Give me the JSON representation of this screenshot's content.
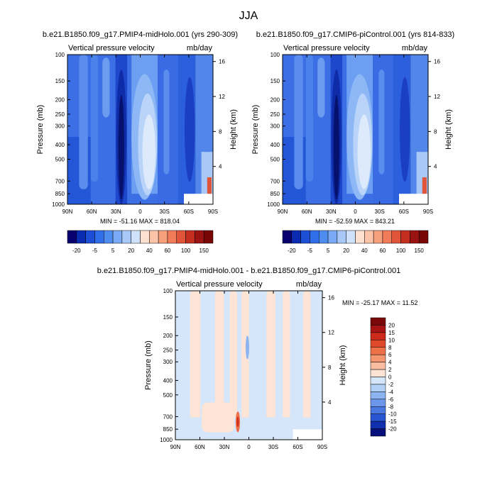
{
  "figure": {
    "title": "JJA"
  },
  "chart_data": [
    {
      "type": "heatmap",
      "title": "b.e21.B1850.f09_g17.PMIP4-midHolo.001 (yrs 290-309)",
      "left_label": "Vertical pressure velocity",
      "units": "mb/day",
      "ylabel": "Pressure (mb)",
      "y2label": "Height (km)",
      "x_ticks": [
        "90N",
        "60N",
        "30N",
        "0",
        "30S",
        "60S",
        "90S"
      ],
      "y_ticks": [
        100,
        150,
        200,
        250,
        300,
        400,
        500,
        700,
        850,
        1000
      ],
      "y2_ticks": [
        16,
        12,
        8,
        4
      ],
      "stats": "MIN = -51.16  MAX = 818.04",
      "colorbar_labels": [
        "-20",
        "-5",
        "5",
        "20",
        "40",
        "60",
        "100",
        "150"
      ]
    },
    {
      "type": "heatmap",
      "title": "b.e21.B1850.f09_g17.CMIP6-piControl.001 (yrs 814-833)",
      "left_label": "Vertical pressure velocity",
      "units": "mb/day",
      "ylabel": "Pressure (mb)",
      "y2label": "Height (km)",
      "x_ticks": [
        "90N",
        "60N",
        "30N",
        "0",
        "30S",
        "60S",
        "90S"
      ],
      "y_ticks": [
        100,
        150,
        200,
        250,
        300,
        400,
        500,
        700,
        850,
        1000
      ],
      "y2_ticks": [
        16,
        12,
        8,
        4
      ],
      "stats": "MIN = -52.59  MAX = 843.21",
      "colorbar_labels": [
        "-20",
        "-5",
        "5",
        "20",
        "40",
        "60",
        "100",
        "150"
      ]
    },
    {
      "type": "heatmap",
      "title": "b.e21.B1850.f09_g17.PMIP4-midHolo.001 - b.e21.B1850.f09_g17.CMIP6-piControl.001",
      "left_label": "Vertical pressure velocity",
      "units": "mb/day",
      "ylabel": "Pressure (mb)",
      "y2label": "Height (km)",
      "x_ticks": [
        "90N",
        "60N",
        "30N",
        "0",
        "30S",
        "60S",
        "90S"
      ],
      "y_ticks": [
        100,
        150,
        200,
        250,
        300,
        400,
        500,
        700,
        850,
        1000
      ],
      "y2_ticks": [
        16,
        12,
        8,
        4
      ],
      "stats": "MIN = -25.17  MAX =  11.52",
      "colorbar_labels": [
        "20",
        "15",
        "10",
        "8",
        "6",
        "4",
        "2",
        "0",
        "-2",
        "-4",
        "-6",
        "-8",
        "-10",
        "-15",
        "-20"
      ]
    }
  ],
  "colors": {
    "abs_colorbar": [
      "#08006e",
      "#0b2bb0",
      "#1c4fd6",
      "#2f6ee8",
      "#4f8cf0",
      "#7aaaf5",
      "#a8c8f8",
      "#d0e2fb",
      "#fde0d0",
      "#fbc3a8",
      "#f7a07e",
      "#f07c5a",
      "#e0543a",
      "#c32e20",
      "#9b1212",
      "#780606"
    ],
    "diff_colorbar": [
      "#7a0808",
      "#a81414",
      "#cc2a1a",
      "#e04a2a",
      "#ee7048",
      "#f49670",
      "#f8bca0",
      "#fde4d4",
      "#d6e6fa",
      "#b2cff5",
      "#8cb4f0",
      "#6a97ea",
      "#4a78e0",
      "#2a55d2",
      "#1030b0",
      "#06107a"
    ]
  }
}
